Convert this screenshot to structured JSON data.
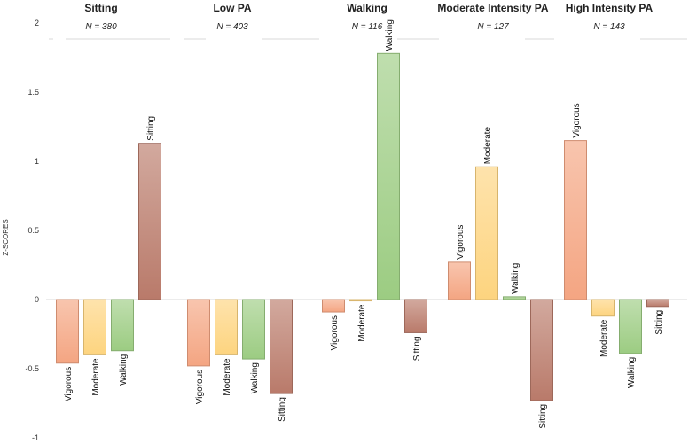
{
  "chart_data": {
    "type": "bar",
    "ylabel": "Z-SCORES",
    "ylim": [
      -1,
      2
    ],
    "yticks": [
      "2",
      "1.5",
      "1",
      "0.5",
      "0",
      "-0.5",
      "-1"
    ],
    "categories": [
      "Vigorous",
      "Moderate",
      "Walking",
      "Sitting"
    ],
    "colors": {
      "Vigorous": "#f4a582",
      "Moderate": "#fdd47f",
      "Walking": "#9ccc82",
      "Sitting": "#b97a6a"
    },
    "groups": [
      {
        "title": "Sitting",
        "n": "N = 380",
        "values": [
          -0.46,
          -0.4,
          -0.37,
          1.13
        ]
      },
      {
        "title": "Low PA",
        "n": "N = 403",
        "values": [
          -0.48,
          -0.4,
          -0.43,
          -0.68
        ]
      },
      {
        "title": "Walking",
        "n": "N = 116",
        "values": [
          -0.09,
          -0.01,
          1.78,
          -0.24
        ]
      },
      {
        "title": "Moderate Intensity PA",
        "n": "N = 127",
        "values": [
          0.27,
          0.96,
          0.02,
          -0.73
        ]
      },
      {
        "title": "High Intensity PA",
        "n": "N = 143",
        "values": [
          1.15,
          -0.12,
          -0.39,
          -0.05
        ]
      }
    ]
  }
}
